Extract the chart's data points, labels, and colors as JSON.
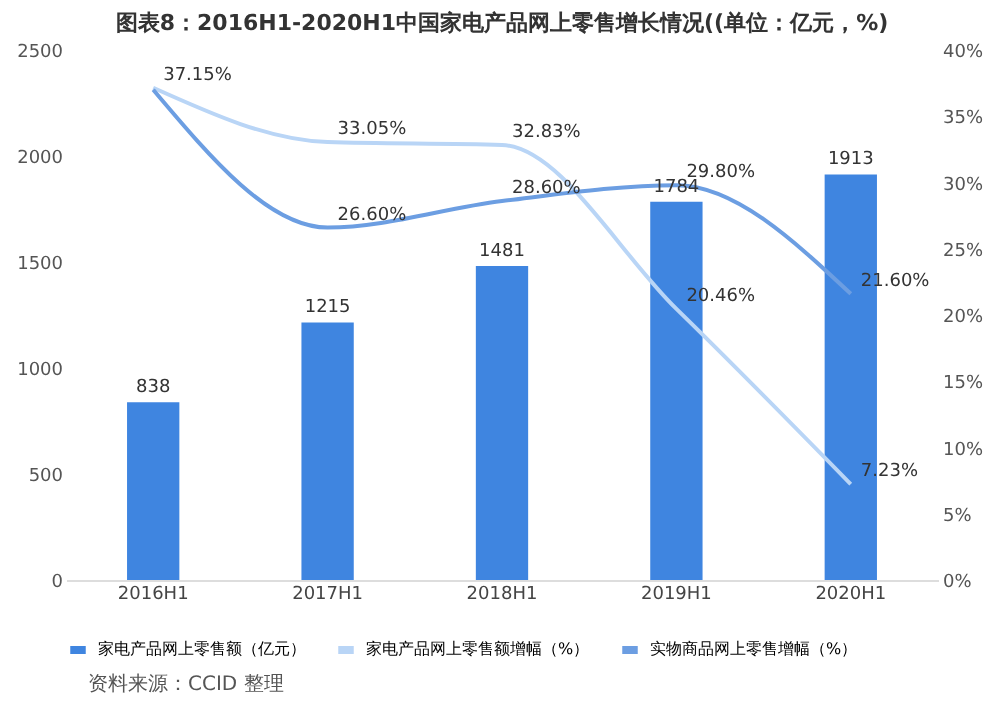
{
  "chart_data": {
    "type": "bar",
    "title": "图表8：2016H1-2020H1中国家电产品网上零售增长情况((单位：亿元，%)",
    "categories": [
      "2016H1",
      "2017H1",
      "2018H1",
      "2019H1",
      "2020H1"
    ],
    "series": [
      {
        "name": "家电产品网上零售额（亿元）",
        "color": "#3f85e0",
        "values": [
          838,
          1215,
          1481,
          1784,
          1913
        ],
        "value_labels": [
          "838",
          "1215",
          "1481",
          "1784",
          "1913"
        ]
      },
      {
        "name": "家电产品网上零售额增幅（%）",
        "type": "line",
        "axis": "y2",
        "color": "#b9d5f6",
        "values": [
          37.15,
          33.05,
          32.83,
          20.46,
          7.23
        ],
        "value_labels": [
          "37.15%",
          "33.05%",
          "32.83%",
          "20.46%",
          "7.23%"
        ]
      },
      {
        "name": "实物商品网上零售增幅（%）",
        "type": "line",
        "axis": "y2",
        "color": "#6c9ee2",
        "values": [
          37,
          26.6,
          28.6,
          29.8,
          21.6
        ],
        "value_labels": [
          null,
          "26.60%",
          "28.60%",
          "29.80%",
          "21.60%"
        ]
      }
    ],
    "ylim": [
      0,
      2500
    ],
    "yticks": [
      0,
      500,
      1000,
      1500,
      2000,
      2500
    ],
    "y2lim": [
      0,
      40
    ],
    "y2ticks": [
      {
        "value": 0,
        "label": "0%"
      },
      {
        "value": 5,
        "label": "5%"
      },
      {
        "value": 10,
        "label": "10%"
      },
      {
        "value": 15,
        "label": "15%"
      },
      {
        "value": 20,
        "label": "20%"
      },
      {
        "value": 25,
        "label": "25%"
      },
      {
        "value": 30,
        "label": "30%"
      },
      {
        "value": 35,
        "label": "35%"
      },
      {
        "value": 40,
        "label": "40%"
      }
    ],
    "legend": "bottom",
    "annotations": [
      "资料来源：CCID 整理"
    ]
  }
}
